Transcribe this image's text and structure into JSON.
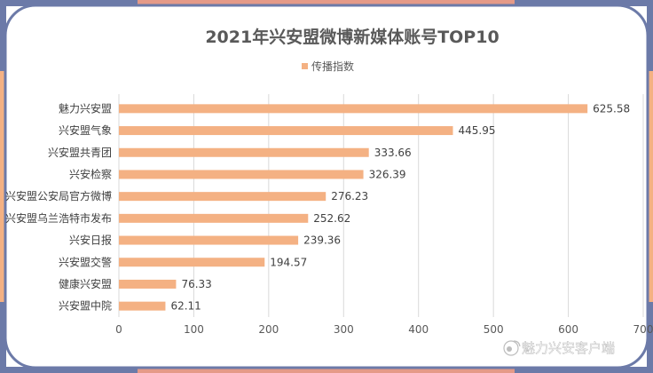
{
  "colors": {
    "bar": "#F4B183",
    "frame_blue": "#6C7AA8",
    "frame_salmon": "#E59A88",
    "frame_orange": "#F4B183",
    "grid": "#D9D9D9"
  },
  "watermark": {
    "text": "魅力兴安客户端",
    "icon": "weibo-like-logo-icon"
  },
  "chart_data": {
    "type": "bar",
    "orientation": "horizontal",
    "title": "2021年兴安盟微博新媒体账号TOP10",
    "legend": {
      "position": "top",
      "entries": [
        "传播指数"
      ]
    },
    "categories": [
      "魅力兴安盟",
      "兴安盟气象",
      "兴安盟共青团",
      "兴安检察",
      "兴安盟公安局官方微博",
      "兴安盟乌兰浩特市发布",
      "兴安日报",
      "兴安盟交警",
      "健康兴安盟",
      "兴安盟中院"
    ],
    "series": [
      {
        "name": "传播指数",
        "values": [
          625.58,
          445.95,
          333.66,
          326.39,
          276.23,
          252.62,
          239.36,
          194.57,
          76.33,
          62.11
        ]
      }
    ],
    "data_labels": [
      "625.58",
      "445.95",
      "333.66",
      "326.39",
      "276.23",
      "252.62",
      "239.36",
      "194.57",
      "76.33",
      "62.11"
    ],
    "xlim": [
      0,
      700
    ],
    "x_ticks": [
      "0",
      "100",
      "200",
      "300",
      "400",
      "500",
      "600",
      "700"
    ],
    "grid": true
  }
}
